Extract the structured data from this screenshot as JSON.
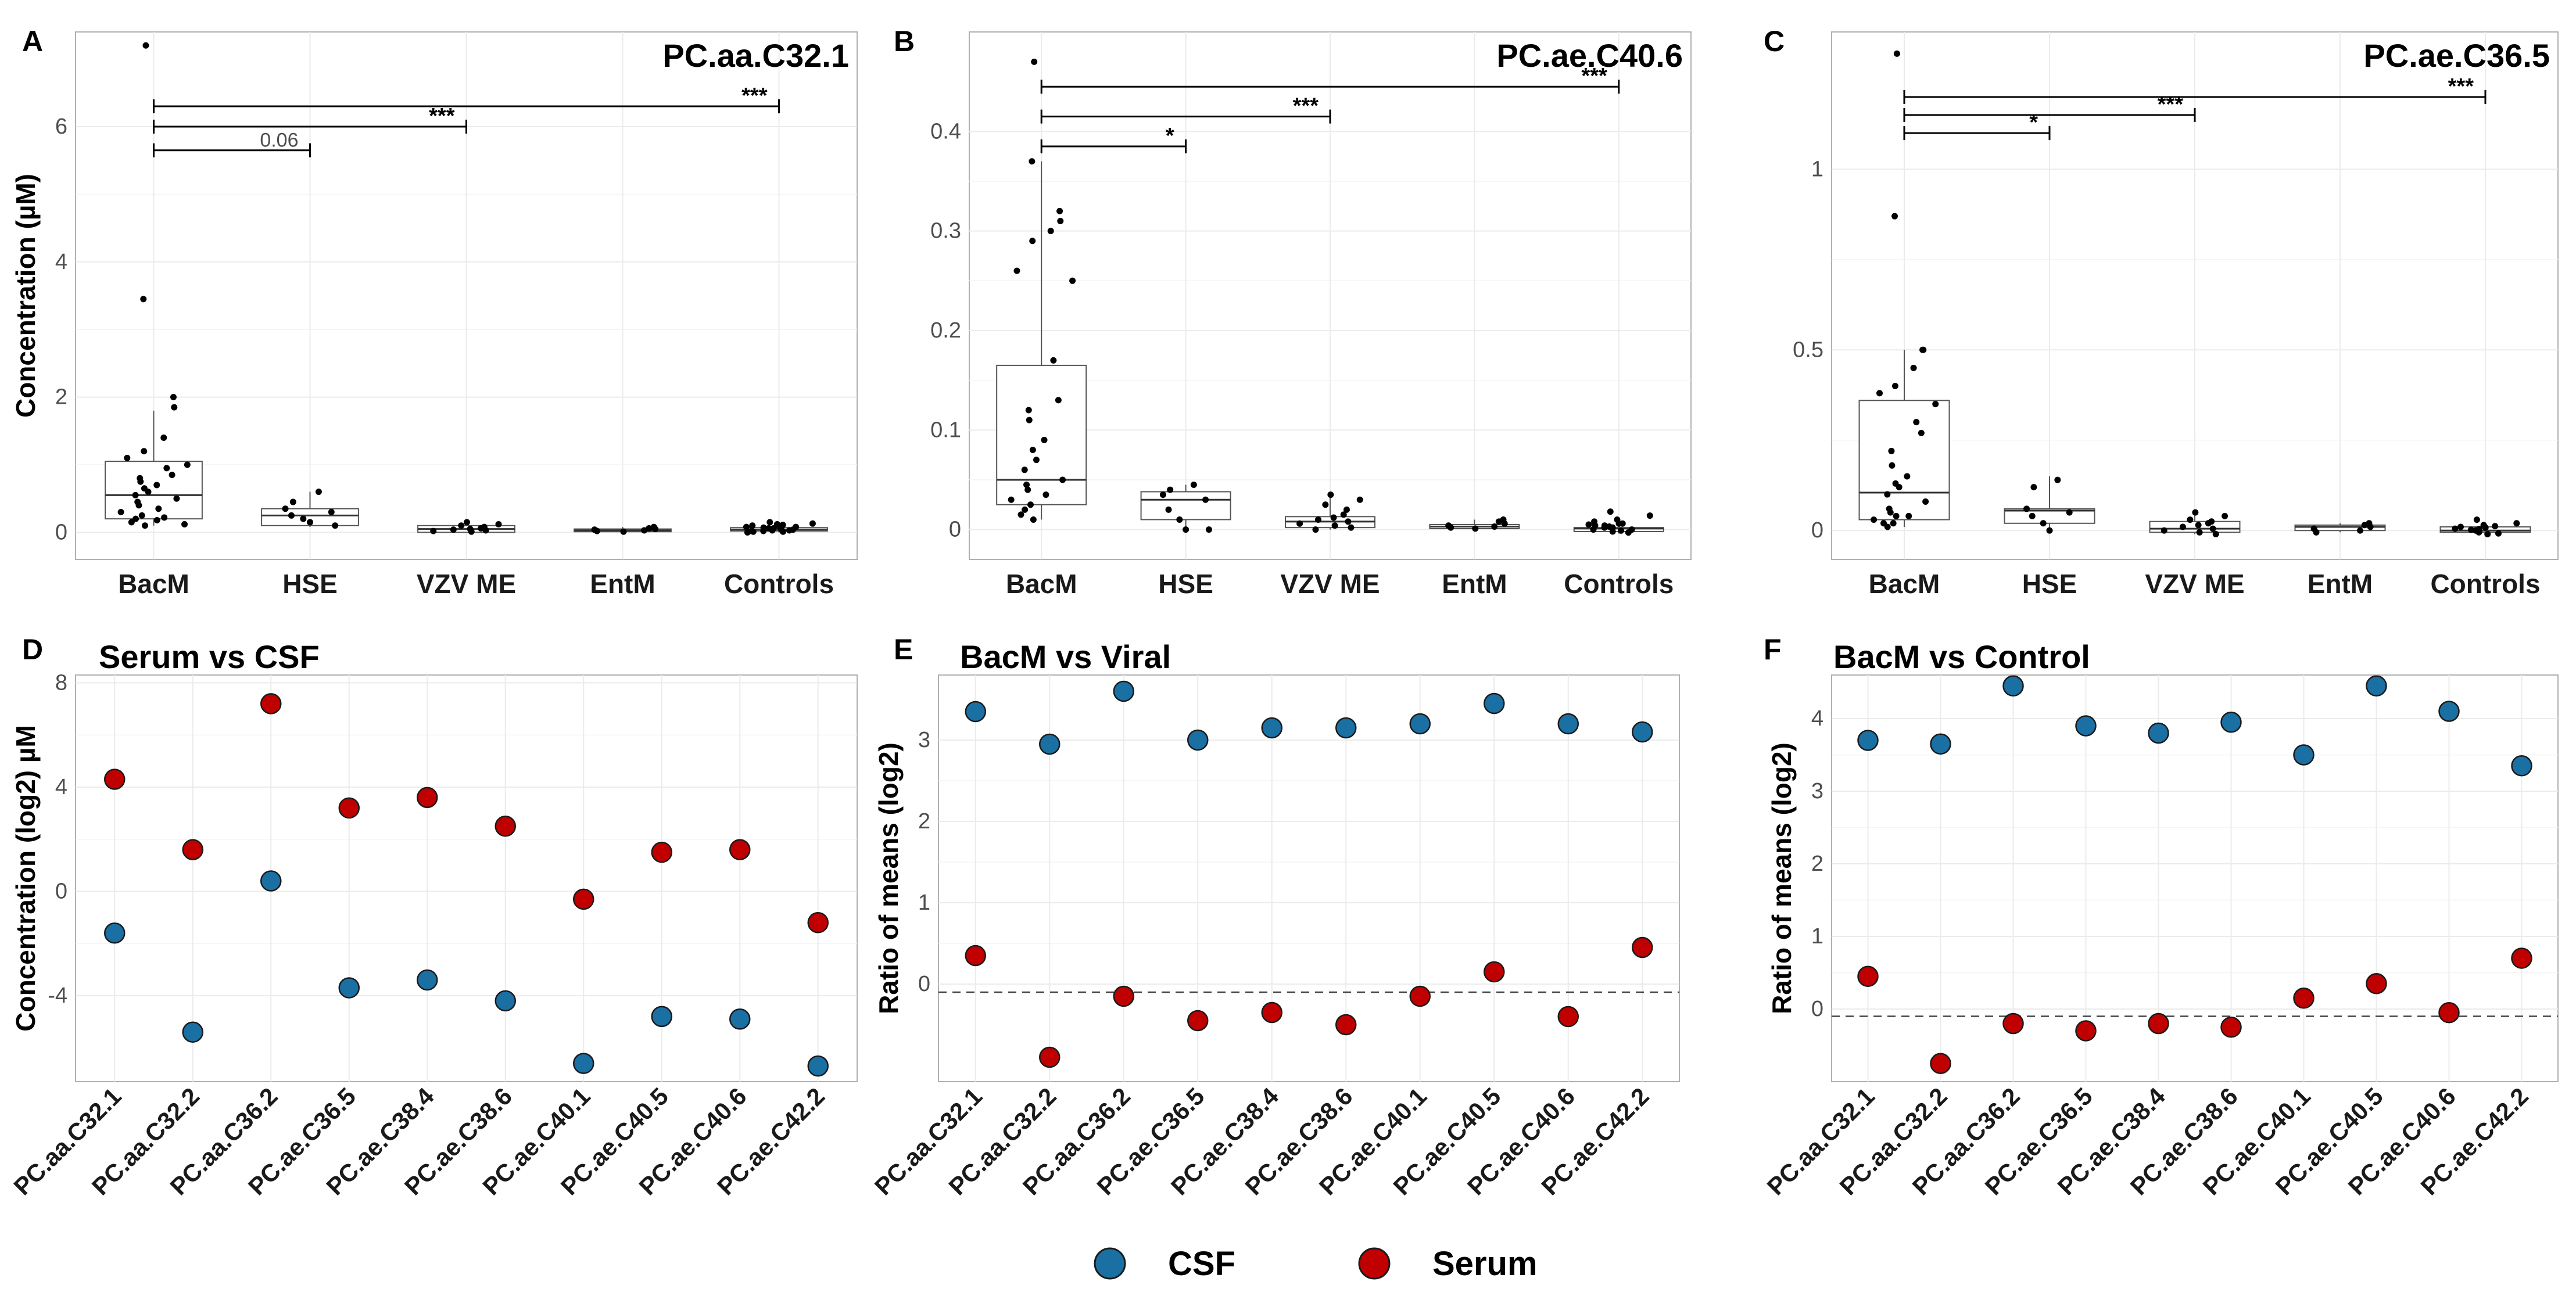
{
  "colors": {
    "csf": "#1a6fa3",
    "serum": "#c00000",
    "grid": "#ebebeb",
    "border": "#b0b0b0"
  },
  "legend": [
    {
      "name": "CSF",
      "color": "#1a6fa3"
    },
    {
      "name": "Serum",
      "color": "#c00000"
    }
  ],
  "chart_data": [
    {
      "panel": "A",
      "type": "boxplot",
      "title": "PC.aa.C32.1",
      "ylabel": "Concentration (µM)",
      "categories": [
        "BacM",
        "HSE",
        "VZV ME",
        "EntM",
        "Controls"
      ],
      "yticks": [
        0,
        2,
        4,
        6
      ],
      "ylim": [
        -0.4,
        7.4
      ],
      "boxes": [
        {
          "group": "BacM",
          "q1": 0.2,
          "median": 0.55,
          "q3": 1.05,
          "whisker_low": 0.1,
          "whisker_high": 1.8,
          "points": [
            7.2,
            3.45,
            2.0,
            1.85,
            1.4,
            1.2,
            1.1,
            1.0,
            0.95,
            0.85,
            0.8,
            0.75,
            0.7,
            0.65,
            0.6,
            0.55,
            0.5,
            0.45,
            0.4,
            0.35,
            0.3,
            0.25,
            0.2,
            0.15,
            0.1,
            0.12,
            0.18,
            0.22
          ]
        },
        {
          "group": "HSE",
          "q1": 0.1,
          "median": 0.25,
          "q3": 0.35,
          "whisker_low": 0.08,
          "whisker_high": 0.6,
          "points": [
            0.6,
            0.45,
            0.35,
            0.3,
            0.25,
            0.2,
            0.15,
            0.1
          ]
        },
        {
          "group": "VZV ME",
          "q1": 0.0,
          "median": 0.05,
          "q3": 0.1,
          "whisker_low": 0.0,
          "whisker_high": 0.15,
          "points": [
            0.15,
            0.12,
            0.1,
            0.08,
            0.06,
            0.05,
            0.04,
            0.03,
            0.02,
            0.01
          ]
        },
        {
          "group": "EntM",
          "q1": 0.01,
          "median": 0.03,
          "q3": 0.05,
          "whisker_low": 0.0,
          "whisker_high": 0.08,
          "points": [
            0.08,
            0.06,
            0.05,
            0.04,
            0.03,
            0.02,
            0.01
          ]
        },
        {
          "group": "Controls",
          "q1": 0.02,
          "median": 0.04,
          "q3": 0.07,
          "whisker_low": 0.0,
          "whisker_high": 0.15,
          "points": [
            0.15,
            0.13,
            0.12,
            0.1,
            0.09,
            0.08,
            0.07,
            0.06,
            0.05,
            0.05,
            0.04,
            0.04,
            0.03,
            0.03,
            0.02,
            0.02,
            0.01,
            0.01,
            0.0,
            0.06,
            0.08,
            0.11
          ]
        }
      ],
      "significance": [
        {
          "from": "BacM",
          "to": "Controls",
          "y": 6.3,
          "label": "***"
        },
        {
          "from": "BacM",
          "to": "VZV ME",
          "y": 6.0,
          "label": "***"
        },
        {
          "from": "BacM",
          "to": "HSE",
          "y": 5.65,
          "label": "0.06"
        }
      ]
    },
    {
      "panel": "B",
      "type": "boxplot",
      "title": "PC.ae.C40.6",
      "ylabel": "",
      "categories": [
        "BacM",
        "HSE",
        "VZV ME",
        "EntM",
        "Controls"
      ],
      "yticks": [
        0.0,
        0.1,
        0.2,
        0.3,
        0.4
      ],
      "ylim": [
        -0.03,
        0.5
      ],
      "boxes": [
        {
          "group": "BacM",
          "q1": 0.025,
          "median": 0.05,
          "q3": 0.165,
          "whisker_low": 0.01,
          "whisker_high": 0.37,
          "points": [
            0.47,
            0.37,
            0.32,
            0.31,
            0.3,
            0.29,
            0.26,
            0.25,
            0.17,
            0.13,
            0.12,
            0.11,
            0.09,
            0.08,
            0.07,
            0.06,
            0.05,
            0.045,
            0.04,
            0.035,
            0.03,
            0.025,
            0.02,
            0.015,
            0.01
          ]
        },
        {
          "group": "HSE",
          "q1": 0.01,
          "median": 0.03,
          "q3": 0.038,
          "whisker_low": 0.0,
          "whisker_high": 0.045,
          "points": [
            0.045,
            0.04,
            0.035,
            0.03,
            0.02,
            0.01,
            0.0,
            0.0
          ]
        },
        {
          "group": "VZV ME",
          "q1": 0.002,
          "median": 0.008,
          "q3": 0.013,
          "whisker_low": 0.0,
          "whisker_high": 0.035,
          "points": [
            0.035,
            0.03,
            0.025,
            0.02,
            0.015,
            0.012,
            0.01,
            0.008,
            0.006,
            0.004,
            0.002,
            0.0
          ]
        },
        {
          "group": "EntM",
          "q1": 0.001,
          "median": 0.003,
          "q3": 0.005,
          "whisker_low": 0.0,
          "whisker_high": 0.01,
          "points": [
            0.01,
            0.008,
            0.006,
            0.004,
            0.003,
            0.002,
            0.001
          ]
        },
        {
          "group": "Controls",
          "q1": -0.002,
          "median": 0.001,
          "q3": 0.002,
          "whisker_low": -0.004,
          "whisker_high": 0.005,
          "points": [
            0.018,
            0.014,
            0.01,
            0.008,
            0.006,
            0.005,
            0.004,
            0.003,
            0.002,
            0.001,
            0.0,
            -0.001,
            -0.002,
            -0.003,
            0.0,
            0.002,
            0.004,
            0.006
          ]
        }
      ],
      "significance": [
        {
          "from": "BacM",
          "to": "Controls",
          "y": 0.445,
          "label": "***"
        },
        {
          "from": "BacM",
          "to": "VZV ME",
          "y": 0.415,
          "label": "***"
        },
        {
          "from": "BacM",
          "to": "HSE",
          "y": 0.385,
          "label": "*"
        }
      ]
    },
    {
      "panel": "C",
      "type": "boxplot",
      "title": "PC.ae.C36.5",
      "ylabel": "",
      "categories": [
        "BacM",
        "HSE",
        "VZV ME",
        "EntM",
        "Controls"
      ],
      "yticks": [
        0.0,
        0.5,
        1.0
      ],
      "ylim": [
        -0.08,
        1.38
      ],
      "boxes": [
        {
          "group": "BacM",
          "q1": 0.03,
          "median": 0.105,
          "q3": 0.36,
          "whisker_low": 0.01,
          "whisker_high": 0.5,
          "points": [
            1.32,
            0.87,
            0.5,
            0.5,
            0.45,
            0.4,
            0.38,
            0.35,
            0.3,
            0.27,
            0.22,
            0.18,
            0.15,
            0.13,
            0.12,
            0.1,
            0.08,
            0.06,
            0.05,
            0.04,
            0.03,
            0.02,
            0.01,
            0.02,
            0.04
          ]
        },
        {
          "group": "HSE",
          "q1": 0.02,
          "median": 0.055,
          "q3": 0.06,
          "whisker_low": 0.0,
          "whisker_high": 0.15,
          "points": [
            0.14,
            0.12,
            0.06,
            0.05,
            0.04,
            0.02,
            0.0
          ]
        },
        {
          "group": "VZV ME",
          "q1": -0.005,
          "median": 0.005,
          "q3": 0.025,
          "whisker_low": -0.01,
          "whisker_high": 0.05,
          "points": [
            0.05,
            0.04,
            0.03,
            0.025,
            0.02,
            0.015,
            0.01,
            0.005,
            0.0,
            -0.005,
            -0.01
          ]
        },
        {
          "group": "EntM",
          "q1": 0.0,
          "median": 0.01,
          "q3": 0.015,
          "whisker_low": -0.005,
          "whisker_high": 0.02,
          "points": [
            0.02,
            0.015,
            0.01,
            0.005,
            0.0,
            -0.005
          ]
        },
        {
          "group": "Controls",
          "q1": -0.005,
          "median": 0.0,
          "q3": 0.01,
          "whisker_low": -0.01,
          "whisker_high": 0.02,
          "points": [
            0.03,
            0.02,
            0.015,
            0.01,
            0.008,
            0.005,
            0.002,
            0.0,
            -0.002,
            -0.005,
            -0.008,
            -0.01,
            0.004,
            0.012
          ]
        }
      ],
      "significance": [
        {
          "from": "BacM",
          "to": "Controls",
          "y": 1.2,
          "label": "***"
        },
        {
          "from": "BacM",
          "to": "VZV ME",
          "y": 1.15,
          "label": "***"
        },
        {
          "from": "BacM",
          "to": "HSE",
          "y": 1.1,
          "label": "*"
        }
      ]
    },
    {
      "panel": "D",
      "type": "scatter",
      "title": "Serum vs CSF",
      "ylabel": "Concentration (log2) µM",
      "categories": [
        "PC.aa.C32.1",
        "PC.aa.C32.2",
        "PC.aa.C36.2",
        "PC.ae.C36.5",
        "PC.ae.C38.4",
        "PC.ae.C38.6",
        "PC.ae.C40.1",
        "PC.ae.C40.5",
        "PC.ae.C40.6",
        "PC.ae.C42.2"
      ],
      "yticks": [
        -4,
        0,
        4,
        8
      ],
      "ylim": [
        -7.3,
        8.3
      ],
      "refline": null,
      "series": [
        {
          "name": "CSF",
          "values": [
            -1.6,
            -5.4,
            0.4,
            -3.7,
            -3.4,
            -4.2,
            -6.6,
            -4.8,
            -4.9,
            -6.7
          ]
        },
        {
          "name": "Serum",
          "values": [
            4.3,
            1.6,
            7.2,
            3.2,
            3.6,
            2.5,
            -0.3,
            1.5,
            1.6,
            -1.2
          ]
        }
      ]
    },
    {
      "panel": "E",
      "type": "scatter",
      "title": "BacM vs Viral",
      "ylabel": "Ratio of means (log2)",
      "categories": [
        "PC.aa.C32.1",
        "PC.aa.C32.2",
        "PC.aa.C36.2",
        "PC.ae.C36.5",
        "PC.ae.C38.4",
        "PC.ae.C38.6",
        "PC.ae.C40.1",
        "PC.ae.C40.5",
        "PC.ae.C40.6",
        "PC.ae.C42.2"
      ],
      "yticks": [
        0,
        1,
        2,
        3
      ],
      "ylim": [
        -1.2,
        3.8
      ],
      "refline": -0.1,
      "series": [
        {
          "name": "CSF",
          "values": [
            3.35,
            2.95,
            3.6,
            3.0,
            3.15,
            3.15,
            3.2,
            3.45,
            3.2,
            3.1
          ]
        },
        {
          "name": "Serum",
          "values": [
            0.35,
            -0.9,
            -0.15,
            -0.45,
            -0.35,
            -0.5,
            -0.15,
            0.15,
            -0.4,
            0.45
          ]
        }
      ]
    },
    {
      "panel": "F",
      "type": "scatter",
      "title": "BacM vs Control",
      "ylabel": "Ratio of means (log2)",
      "categories": [
        "PC.aa.C32.1",
        "PC.aa.C32.2",
        "PC.aa.C36.2",
        "PC.ae.C36.5",
        "PC.ae.C38.4",
        "PC.ae.C38.6",
        "PC.ae.C40.1",
        "PC.ae.C40.5",
        "PC.ae.C40.6",
        "PC.ae.C42.2"
      ],
      "yticks": [
        0,
        1,
        2,
        3,
        4
      ],
      "ylim": [
        -1.0,
        4.6
      ],
      "refline": -0.1,
      "series": [
        {
          "name": "CSF",
          "values": [
            3.7,
            3.65,
            4.45,
            3.9,
            3.8,
            3.95,
            3.5,
            4.45,
            4.1,
            3.35
          ]
        },
        {
          "name": "Serum",
          "values": [
            0.45,
            -0.75,
            -0.2,
            -0.3,
            -0.2,
            -0.25,
            0.15,
            0.35,
            -0.05,
            0.7
          ]
        }
      ]
    }
  ]
}
